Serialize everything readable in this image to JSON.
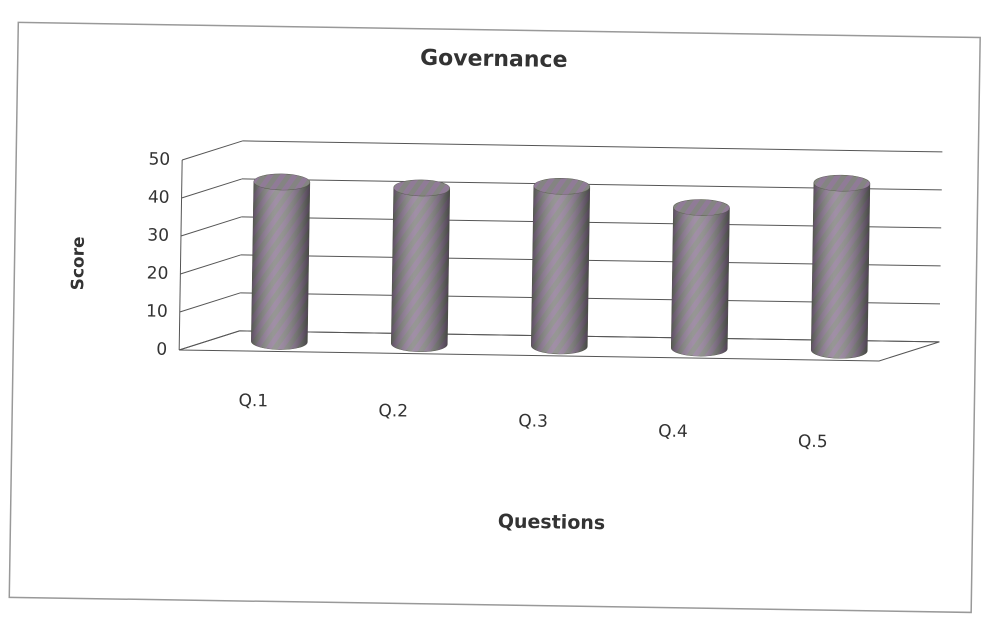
{
  "chart_data": {
    "type": "bar",
    "title": "Governance",
    "categories": [
      "Q.1",
      "Q.2",
      "Q.3",
      "Q.4",
      "Q.5"
    ],
    "values": [
      42,
      41,
      42,
      37,
      44
    ],
    "color": "#7b6e9e",
    "xlabel": "Questions",
    "ylabel": "Score",
    "ylim": [
      0,
      50
    ],
    "yticks": [
      0,
      10,
      20,
      30,
      40,
      50
    ],
    "grid": true
  }
}
